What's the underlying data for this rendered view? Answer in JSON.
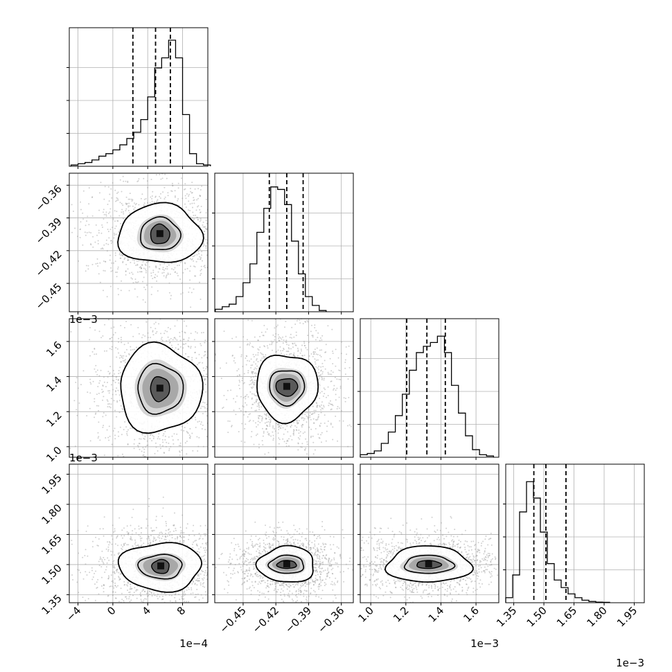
{
  "chart_data": {
    "type": "corner",
    "title": "",
    "grid": true,
    "parameters": [
      {
        "axis_range": [
          -5.0,
          10.9
        ],
        "ticks": [
          -4,
          0,
          4,
          8
        ],
        "tick_labels": [
          "−4",
          "0",
          "4",
          "8"
        ],
        "offset_label": "1e−4"
      },
      {
        "axis_range": [
          -0.476,
          -0.349
        ],
        "ticks": [
          -0.45,
          -0.42,
          -0.39,
          -0.36
        ],
        "tick_labels": [
          "−0.45",
          "−0.42",
          "−0.39",
          "−0.36"
        ],
        "offset_label": ""
      },
      {
        "axis_range": [
          0.94,
          1.73
        ],
        "ticks": [
          1.0,
          1.2,
          1.4,
          1.6
        ],
        "tick_labels": [
          "1.0",
          "1.2",
          "1.4",
          "1.6"
        ],
        "offset_label": "1e−3"
      },
      {
        "axis_range": [
          1.31,
          2.0
        ],
        "ticks": [
          1.35,
          1.5,
          1.65,
          1.8,
          1.95
        ],
        "tick_labels": [
          "1.35",
          "1.50",
          "1.65",
          "1.80",
          "1.95"
        ],
        "offset_label": "1e−3"
      }
    ],
    "histograms": [
      {
        "bin_edges_start": -4.8,
        "bin_width": 0.8,
        "counts": [
          0.01,
          0.02,
          0.03,
          0.05,
          0.08,
          0.1,
          0.13,
          0.17,
          0.22,
          0.27,
          0.37,
          0.55,
          0.78,
          0.86,
          1.0,
          0.86,
          0.41,
          0.1,
          0.02,
          0.01
        ],
        "quantiles": [
          2.3,
          4.9,
          6.6
        ]
      },
      {
        "bin_edges_start": -0.4755,
        "bin_width": 0.00635,
        "counts": [
          0.02,
          0.04,
          0.06,
          0.12,
          0.23,
          0.38,
          0.63,
          0.82,
          0.99,
          0.97,
          0.85,
          0.56,
          0.3,
          0.12,
          0.05,
          0.01
        ],
        "quantiles": [
          -0.426,
          -0.41,
          -0.395
        ]
      },
      {
        "bin_edges_start": 0.94,
        "bin_width": 0.04,
        "counts": [
          0.02,
          0.03,
          0.05,
          0.11,
          0.2,
          0.33,
          0.5,
          0.69,
          0.83,
          0.88,
          0.91,
          0.96,
          0.83,
          0.57,
          0.35,
          0.17,
          0.06,
          0.02,
          0.01
        ],
        "quantiles": [
          1.205,
          1.32,
          1.425
        ]
      },
      {
        "bin_edges_start": 1.31,
        "bin_width": 0.0345,
        "counts": [
          0.04,
          0.22,
          0.72,
          0.96,
          0.83,
          0.56,
          0.31,
          0.18,
          0.12,
          0.07,
          0.04,
          0.02,
          0.01,
          0.005,
          0.003
        ],
        "quantiles": [
          1.45,
          1.51,
          1.61
        ]
      }
    ],
    "contour_pairs": [
      {
        "x": 0,
        "y": 1,
        "center": [
          5.4,
          -0.405
        ],
        "inner_radius": [
          1.1,
          0.009
        ],
        "middle_radius": [
          2.3,
          0.015
        ],
        "outer_radius": [
          4.8,
          0.027
        ]
      },
      {
        "x": 0,
        "y": 2,
        "center": [
          5.4,
          1.33
        ],
        "inner_radius": [
          1.1,
          0.07
        ],
        "middle_radius": [
          2.6,
          0.14
        ],
        "outer_radius": [
          4.7,
          0.25
        ]
      },
      {
        "x": 1,
        "y": 2,
        "center": [
          -0.41,
          1.34
        ],
        "inner_radius": [
          0.01,
          0.05
        ],
        "middle_radius": [
          0.016,
          0.1
        ],
        "outer_radius": [
          0.028,
          0.19
        ]
      },
      {
        "x": 0,
        "y": 3,
        "center": [
          5.5,
          1.49
        ],
        "inner_radius": [
          1.0,
          0.035
        ],
        "middle_radius": [
          2.5,
          0.06
        ],
        "outer_radius": [
          4.7,
          0.12
        ]
      },
      {
        "x": 1,
        "y": 3,
        "center": [
          -0.41,
          1.5
        ],
        "inner_radius": [
          0.009,
          0.02
        ],
        "middle_radius": [
          0.016,
          0.045
        ],
        "outer_radius": [
          0.026,
          0.09
        ]
      },
      {
        "x": 2,
        "y": 3,
        "center": [
          1.33,
          1.5
        ],
        "inner_radius": [
          0.07,
          0.02
        ],
        "middle_radius": [
          0.14,
          0.045
        ],
        "outer_radius": [
          0.24,
          0.09
        ]
      }
    ]
  }
}
